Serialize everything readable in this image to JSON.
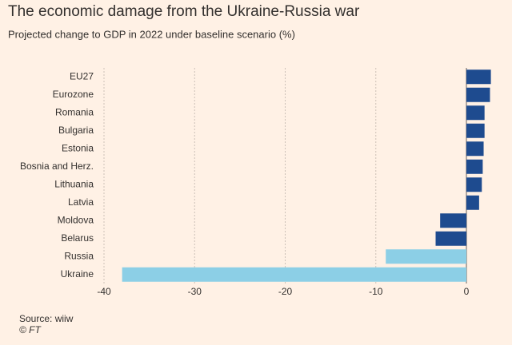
{
  "chart_data": {
    "type": "hbar",
    "title": "The economic damage from the Ukraine-Russia war",
    "subtitle": "Projected change to GDP in 2022 under baseline scenario (%)",
    "categories": [
      "EU27",
      "Eurozone",
      "Romania",
      "Bulgaria",
      "Estonia",
      "Bosnia and Herz.",
      "Lithuania",
      "Latvia",
      "Moldova",
      "Belarus",
      "Russia",
      "Ukraine"
    ],
    "values": [
      2.7,
      2.6,
      2.0,
      2.0,
      1.9,
      1.8,
      1.7,
      1.4,
      -2.9,
      -3.4,
      -8.9,
      -38
    ],
    "colors": [
      "#1e4b8f",
      "#1e4b8f",
      "#1e4b8f",
      "#1e4b8f",
      "#1e4b8f",
      "#1e4b8f",
      "#1e4b8f",
      "#1e4b8f",
      "#1e4b8f",
      "#1e4b8f",
      "#8ccfe6",
      "#8ccfe6"
    ],
    "xlim": [
      -40,
      3
    ],
    "xticks": [
      -40,
      -30,
      -20,
      -10,
      0
    ],
    "grid": true,
    "source": "Source: wiiw",
    "credit": "© FT"
  }
}
